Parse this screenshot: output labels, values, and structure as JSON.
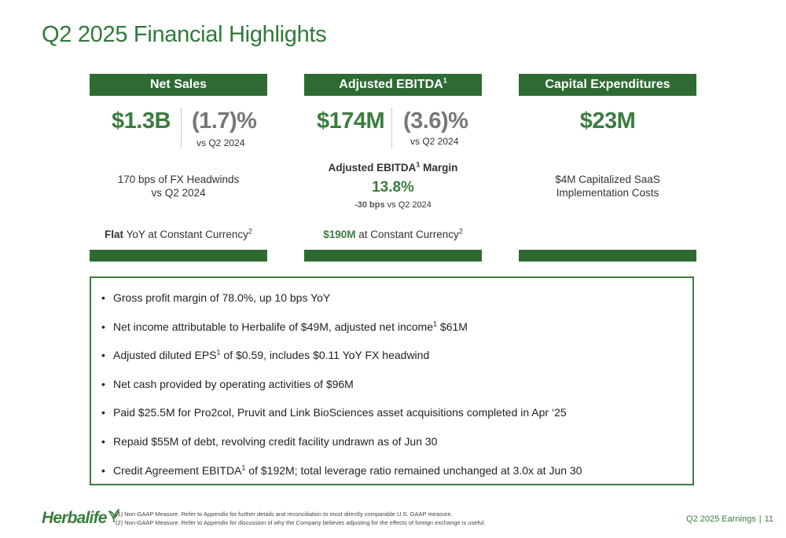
{
  "title": "Q2 2025 Financial Highlights",
  "net_sales": {
    "header": "Net Sales",
    "value": "$1.3B",
    "change": "(1.7)%",
    "vs": "vs Q2 2024",
    "note_line1": "170 bps of FX Headwinds",
    "note_line2": "vs Q2 2024",
    "cc_bold": "Flat",
    "cc_text": " YoY at Constant Currency",
    "cc_sup": "2"
  },
  "ebitda": {
    "header": "Adjusted EBITDA",
    "header_sup": "1",
    "value": "$174M",
    "change": "(3.6)%",
    "vs": "vs Q2 2024",
    "margin_label_a": "Adjusted EBITDA",
    "margin_label_sup": "1",
    "margin_label_b": " Margin",
    "margin_value": "13.8%",
    "margin_delta_bold": "-30 bps",
    "margin_delta_text": " vs Q2 2024",
    "cc_bold": "$190M",
    "cc_text": " at Constant Currency",
    "cc_sup": "2"
  },
  "capex": {
    "header": "Capital Expenditures",
    "value": "$23M",
    "note_line1": "$4M Capitalized SaaS",
    "note_line2": "Implementation Costs"
  },
  "bullets": [
    {
      "a": "Gross profit margin of 78.0%, up 10 bps YoY",
      "sup": "",
      "b": ""
    },
    {
      "a": "Net income attributable to Herbalife of $49M, adjusted net income",
      "sup": "1",
      "b": " $61M"
    },
    {
      "a": "Adjusted diluted EPS",
      "sup": "1",
      "b": " of $0.59, includes $0.11 YoY FX headwind"
    },
    {
      "a": "Net cash provided by operating activities of $96M",
      "sup": "",
      "b": ""
    },
    {
      "a": "Paid $25.5M for Pro2col, Pruvit and Link BioSciences asset acquisitions completed in Apr ‘25",
      "sup": "",
      "b": ""
    },
    {
      "a": "Repaid $55M of debt, revolving credit facility undrawn as of Jun 30",
      "sup": "",
      "b": ""
    },
    {
      "a": "Credit Agreement EBITDA",
      "sup": "1",
      "b": " of $192M; total leverage ratio remained unchanged at 3.0x at Jun 30"
    }
  ],
  "bullet_char": "•",
  "footer": {
    "logo": "Herbalife",
    "note1": "(1)   Non-GAAP Measure. Refer to Appendix for further details and reconciliation to most directly comparable U.S. GAAP measure.",
    "note2": "(2)   Non-GAAP Measure. Refer to Appendix for discussion of why the Company believes adjusting for the effects of foreign exchange is useful.",
    "deck": "Q2 2025 Earnings",
    "separator": "|",
    "page": "11"
  },
  "colors": {
    "brand_green": "#2e6b33",
    "accent_green": "#3a7d3f",
    "grey": "#777777"
  }
}
